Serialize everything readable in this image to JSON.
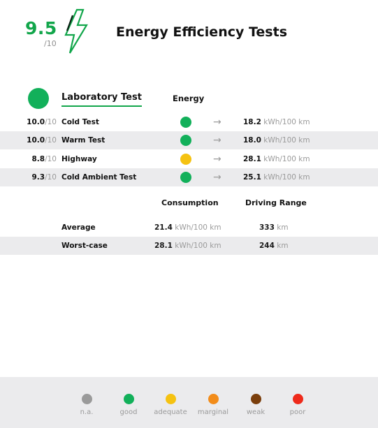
{
  "header": {
    "score": "9.5",
    "score_max": "/10",
    "title": "Energy Efficiency Tests",
    "icon": "lightning-bolt-icon",
    "accent_color": "#12a64b"
  },
  "lab": {
    "title": "Laboratory Test",
    "energy_header": "Energy",
    "status_color": "#12b05a",
    "rows": [
      {
        "score": "10.0",
        "max": "/10",
        "label": "Cold Test",
        "rating": "good",
        "dot_color": "#12b05a",
        "arrow": "→",
        "value": "18.2",
        "unit": "kWh/100 km"
      },
      {
        "score": "10.0",
        "max": "/10",
        "label": "Warm Test",
        "rating": "good",
        "dot_color": "#12b05a",
        "arrow": "→",
        "value": "18.0",
        "unit": "kWh/100 km"
      },
      {
        "score": "8.8",
        "max": "/10",
        "label": "Highway",
        "rating": "adequate",
        "dot_color": "#f5c211",
        "arrow": "→",
        "value": "28.1",
        "unit": "kWh/100 km"
      },
      {
        "score": "9.3",
        "max": "/10",
        "label": "Cold Ambient Test",
        "rating": "good",
        "dot_color": "#12b05a",
        "arrow": "→",
        "value": "25.1",
        "unit": "kWh/100 km"
      }
    ]
  },
  "summary": {
    "consumption_header": "Consumption",
    "range_header": "Driving Range",
    "rows": [
      {
        "label": "Average",
        "consumption": "21.4",
        "consumption_unit": "kWh/100 km",
        "range": "333",
        "range_unit": "km"
      },
      {
        "label": "Worst-case",
        "consumption": "28.1",
        "consumption_unit": "kWh/100 km",
        "range": "244",
        "range_unit": "km"
      }
    ]
  },
  "legend": [
    {
      "label": "n.a.",
      "color": "#9a9a9a"
    },
    {
      "label": "good",
      "color": "#12b05a"
    },
    {
      "label": "adequate",
      "color": "#f5c211"
    },
    {
      "label": "marginal",
      "color": "#f28c1a"
    },
    {
      "label": "weak",
      "color": "#7a3e0c"
    },
    {
      "label": "poor",
      "color": "#ee2a1b"
    }
  ]
}
